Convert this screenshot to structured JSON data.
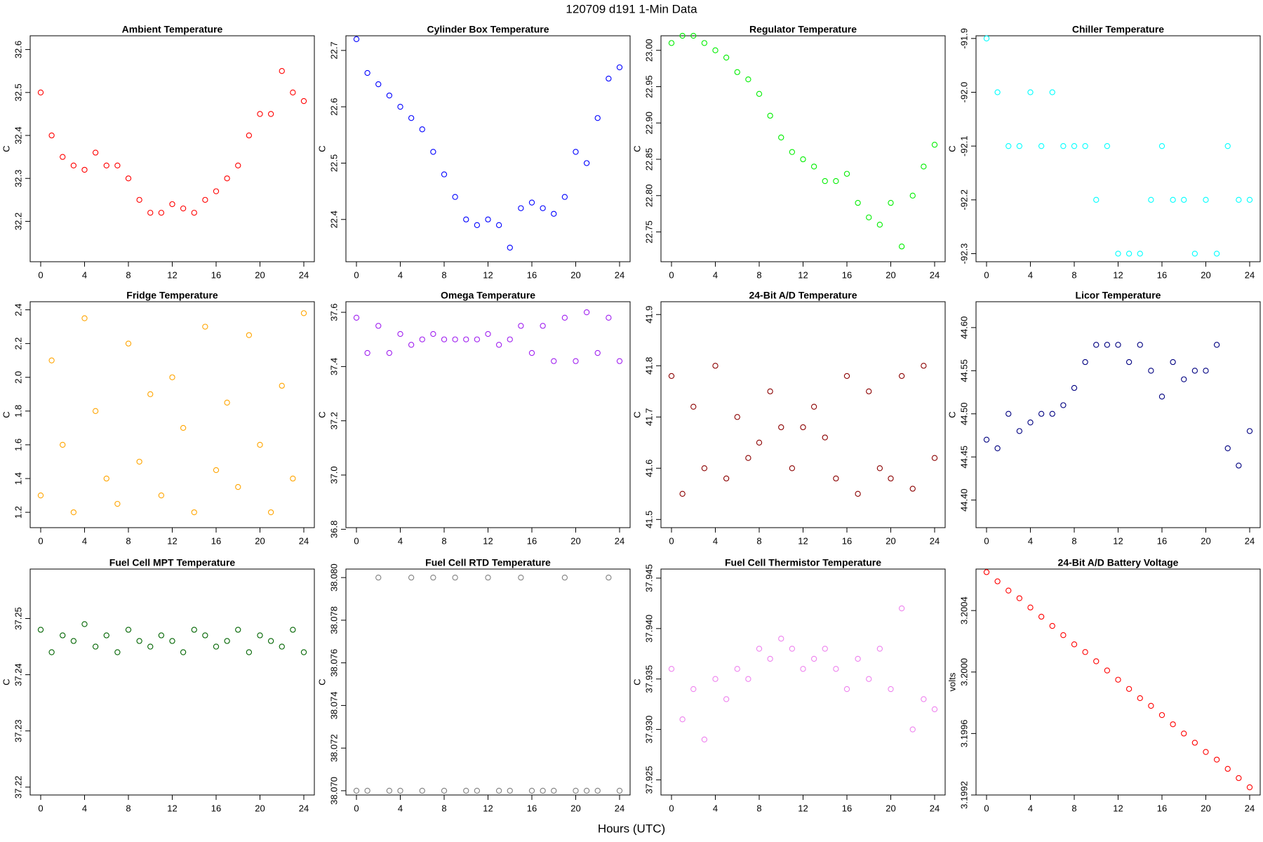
{
  "title": "120709   d191   1-Min Data",
  "x_label": "Hours (UTC)",
  "chart_data": [
    {
      "type": "scatter",
      "title": "Ambient Temperature",
      "y_label": "C",
      "color": "#ff0000",
      "x": [
        0,
        1,
        2,
        3,
        4,
        5,
        6,
        7,
        8,
        9,
        10,
        11,
        12,
        13,
        14,
        15,
        16,
        17,
        18,
        19,
        20,
        21,
        22,
        23,
        24
      ],
      "values": [
        32.5,
        32.4,
        32.35,
        32.33,
        32.32,
        32.36,
        32.33,
        32.33,
        32.3,
        32.25,
        32.22,
        32.22,
        32.24,
        32.23,
        32.22,
        32.25,
        32.27,
        32.3,
        32.33,
        32.4,
        32.45,
        32.45,
        32.55,
        32.5,
        32.48
      ],
      "xlim": [
        -0.96,
        24.96
      ],
      "xticks": [
        0,
        4,
        8,
        12,
        16,
        20,
        24
      ],
      "ylim": [
        32.106,
        32.632
      ],
      "yticks": [
        32.2,
        32.3,
        32.4,
        32.5,
        32.6
      ]
    },
    {
      "type": "scatter",
      "title": "Cylinder Box Temperature",
      "y_label": "C",
      "color": "#0000ff",
      "x": [
        0,
        1,
        2,
        3,
        4,
        5,
        6,
        7,
        8,
        9,
        10,
        11,
        12,
        13,
        14,
        15,
        16,
        17,
        18,
        19,
        20,
        21,
        22,
        23,
        24
      ],
      "values": [
        22.72,
        22.66,
        22.64,
        22.62,
        22.6,
        22.58,
        22.56,
        22.52,
        22.48,
        22.44,
        22.4,
        22.39,
        22.4,
        22.39,
        22.35,
        22.42,
        22.43,
        22.42,
        22.41,
        22.44,
        22.52,
        22.5,
        22.58,
        22.65,
        22.67
      ],
      "xlim": [
        -0.96,
        24.96
      ],
      "xticks": [
        0,
        4,
        8,
        12,
        16,
        20,
        24
      ],
      "ylim": [
        22.325,
        22.726
      ],
      "yticks": [
        22.4,
        22.5,
        22.6,
        22.7
      ]
    },
    {
      "type": "scatter",
      "title": "Regulator Temperature",
      "y_label": "C",
      "color": "#00ee00",
      "x": [
        0,
        1,
        2,
        3,
        4,
        5,
        6,
        7,
        8,
        9,
        10,
        11,
        12,
        13,
        14,
        15,
        16,
        17,
        18,
        19,
        20,
        21,
        22,
        23,
        24
      ],
      "values": [
        23.01,
        23.02,
        23.02,
        23.01,
        23.0,
        22.99,
        22.97,
        22.96,
        22.94,
        22.91,
        22.88,
        22.86,
        22.85,
        22.84,
        22.82,
        22.82,
        22.83,
        22.79,
        22.77,
        22.76,
        22.79,
        22.73,
        22.8,
        22.84,
        22.87
      ],
      "xlim": [
        -0.96,
        24.96
      ],
      "xticks": [
        0,
        4,
        8,
        12,
        16,
        20,
        24
      ],
      "ylim": [
        22.709,
        23.02
      ],
      "yticks": [
        22.75,
        {
          "value": 22.8,
          "label": "22.80"
        },
        22.85,
        {
          "value": 22.9,
          "label": "22.90"
        },
        22.95,
        {
          "value": 23,
          "label": "23.00"
        }
      ]
    },
    {
      "type": "scatter",
      "title": "Chiller Temperature",
      "y_label": "C",
      "color": "#00ffff",
      "x": [
        0,
        1,
        2,
        3,
        4,
        5,
        6,
        7,
        8,
        9,
        10,
        11,
        12,
        13,
        14,
        15,
        16,
        17,
        18,
        19,
        20,
        21,
        22,
        23,
        24
      ],
      "values": [
        -91.9,
        -92.0,
        -92.1,
        -92.1,
        -92.0,
        -92.1,
        -92.0,
        -92.1,
        -92.1,
        -92.1,
        -92.2,
        -92.1,
        -92.3,
        -92.3,
        -92.3,
        -92.2,
        -92.1,
        -92.2,
        -92.2,
        -92.3,
        -92.2,
        -92.3,
        -92.1,
        -92.2,
        -92.2
      ],
      "xlim": [
        -0.96,
        24.96
      ],
      "xticks": [
        0,
        4,
        8,
        12,
        16,
        20,
        24
      ],
      "ylim": [
        -92.315,
        -91.895
      ],
      "yticks": [
        -91.9,
        {
          "value": -92,
          "label": "-92.0"
        },
        -92.1,
        -92.2,
        -92.3
      ]
    },
    {
      "type": "scatter",
      "title": "Fridge Temperature",
      "y_label": "C",
      "color": "#ffa500",
      "x": [
        0,
        1,
        2,
        3,
        4,
        5,
        6,
        7,
        8,
        9,
        10,
        11,
        12,
        13,
        14,
        15,
        16,
        17,
        18,
        19,
        20,
        21,
        22,
        23,
        24
      ],
      "values": [
        1.3,
        2.1,
        1.6,
        1.2,
        2.35,
        1.8,
        1.4,
        1.25,
        2.2,
        1.5,
        1.9,
        1.3,
        2.0,
        1.7,
        1.2,
        2.3,
        1.45,
        1.85,
        1.35,
        2.25,
        1.6,
        1.2,
        1.95,
        1.4,
        2.38
      ],
      "xlim": [
        -0.96,
        24.96
      ],
      "xticks": [
        0,
        4,
        8,
        12,
        16,
        20,
        24
      ],
      "ylim": [
        1.109,
        2.448
      ],
      "yticks": [
        1.2,
        1.4,
        1.6,
        1.8,
        {
          "value": 2,
          "label": "2.0"
        },
        2.2,
        2.4
      ]
    },
    {
      "type": "scatter",
      "title": "Omega Temperature",
      "y_label": "C",
      "color": "#a020f0",
      "x": [
        0,
        1,
        2,
        3,
        4,
        5,
        6,
        7,
        8,
        9,
        10,
        11,
        12,
        13,
        14,
        15,
        16,
        17,
        18,
        19,
        20,
        21,
        22,
        23,
        24
      ],
      "values": [
        37.58,
        37.45,
        37.55,
        37.45,
        37.52,
        37.48,
        37.5,
        37.52,
        37.5,
        37.5,
        37.5,
        37.5,
        37.52,
        37.48,
        37.5,
        37.55,
        37.45,
        37.55,
        37.42,
        37.58,
        37.42,
        37.6,
        37.45,
        37.58,
        37.42
      ],
      "xlim": [
        -0.96,
        24.96
      ],
      "xticks": [
        0,
        4,
        8,
        12,
        16,
        20,
        24
      ],
      "ylim": [
        36.806,
        37.639
      ],
      "yticks": [
        36.8,
        {
          "value": 37,
          "label": "37.0"
        },
        37.2,
        37.4,
        37.6
      ]
    },
    {
      "type": "scatter",
      "title": "24-Bit A/D Temperature",
      "y_label": "C",
      "color": "#8b0000",
      "x": [
        0,
        1,
        2,
        3,
        4,
        5,
        6,
        7,
        8,
        9,
        10,
        11,
        12,
        13,
        14,
        15,
        16,
        17,
        18,
        19,
        20,
        21,
        22,
        23,
        24
      ],
      "values": [
        41.78,
        41.55,
        41.72,
        41.6,
        41.8,
        41.58,
        41.7,
        41.62,
        41.65,
        41.75,
        41.68,
        41.6,
        41.68,
        41.72,
        41.66,
        41.58,
        41.78,
        41.55,
        41.75,
        41.6,
        41.58,
        41.78,
        41.56,
        41.8,
        41.62
      ],
      "xlim": [
        -0.96,
        24.96
      ],
      "xticks": [
        0,
        4,
        8,
        12,
        16,
        20,
        24
      ],
      "ylim": [
        41.484,
        41.925
      ],
      "yticks": [
        41.5,
        41.6,
        41.7,
        41.8,
        41.9
      ]
    },
    {
      "type": "scatter",
      "title": "Licor Temperature",
      "y_label": "C",
      "color": "#000080",
      "x": [
        0,
        1,
        2,
        3,
        4,
        5,
        6,
        7,
        8,
        9,
        10,
        11,
        12,
        13,
        14,
        15,
        16,
        17,
        18,
        19,
        20,
        21,
        22,
        23,
        24
      ],
      "values": [
        44.47,
        44.46,
        44.5,
        44.48,
        44.49,
        44.5,
        44.5,
        44.51,
        44.53,
        44.56,
        44.58,
        44.58,
        44.58,
        44.56,
        44.58,
        44.55,
        44.52,
        44.56,
        44.54,
        44.55,
        44.55,
        44.58,
        44.46,
        44.44,
        44.48
      ],
      "xlim": [
        -0.96,
        24.96
      ],
      "xticks": [
        0,
        4,
        8,
        12,
        16,
        20,
        24
      ],
      "ylim": [
        44.368,
        44.63
      ],
      "yticks": [
        {
          "value": 44.4,
          "label": "44.40"
        },
        44.45,
        {
          "value": 44.5,
          "label": "44.50"
        },
        44.55,
        {
          "value": 44.6,
          "label": "44.60"
        }
      ]
    },
    {
      "type": "scatter",
      "title": "Fuel Cell MPT Temperature",
      "y_label": "C",
      "color": "#006400",
      "x": [
        0,
        1,
        2,
        3,
        4,
        5,
        6,
        7,
        8,
        9,
        10,
        11,
        12,
        13,
        14,
        15,
        16,
        17,
        18,
        19,
        20,
        21,
        22,
        23,
        24
      ],
      "values": [
        37.248,
        37.244,
        37.247,
        37.246,
        37.249,
        37.245,
        37.247,
        37.244,
        37.248,
        37.246,
        37.245,
        37.247,
        37.246,
        37.244,
        37.248,
        37.247,
        37.245,
        37.246,
        37.248,
        37.244,
        37.247,
        37.246,
        37.245,
        37.248,
        37.244
      ],
      "xlim": [
        -0.96,
        24.96
      ],
      "xticks": [
        0,
        4,
        8,
        12,
        16,
        20,
        24
      ],
      "ylim": [
        37.2186,
        37.2588
      ],
      "yticks": [
        37.22,
        37.23,
        37.24,
        37.25
      ]
    },
    {
      "type": "scatter",
      "title": "Fuel Cell RTD Temperature",
      "y_label": "C",
      "color": "#808080",
      "x": [
        0,
        1,
        2,
        3,
        4,
        5,
        6,
        7,
        8,
        9,
        10,
        11,
        12,
        13,
        14,
        15,
        16,
        17,
        18,
        19,
        20,
        21,
        22,
        23,
        24
      ],
      "values": [
        38.07,
        38.07,
        38.08,
        38.07,
        38.07,
        38.08,
        38.07,
        38.08,
        38.07,
        38.08,
        38.07,
        38.07,
        38.08,
        38.07,
        38.07,
        38.08,
        38.07,
        38.07,
        38.07,
        38.08,
        38.07,
        38.07,
        38.07,
        38.08,
        38.07
      ],
      "xlim": [
        -0.96,
        24.96
      ],
      "xticks": [
        0,
        4,
        8,
        12,
        16,
        20,
        24
      ],
      "ylim": [
        38.0698,
        38.0804
      ],
      "yticks": [
        {
          "value": 38.07,
          "label": "38.070"
        },
        38.072,
        38.074,
        38.076,
        38.078,
        {
          "value": 38.08,
          "label": "38.080"
        }
      ]
    },
    {
      "type": "scatter",
      "title": "Fuel Cell Thermistor Temperature",
      "y_label": "C",
      "color": "#ee82ee",
      "x": [
        0,
        1,
        2,
        3,
        4,
        5,
        6,
        7,
        8,
        9,
        10,
        11,
        12,
        13,
        14,
        15,
        16,
        17,
        18,
        19,
        20,
        21,
        22,
        23,
        24
      ],
      "values": [
        37.936,
        37.931,
        37.934,
        37.929,
        37.935,
        37.933,
        37.936,
        37.935,
        37.938,
        37.937,
        37.939,
        37.938,
        37.936,
        37.937,
        37.938,
        37.936,
        37.934,
        37.937,
        37.935,
        37.938,
        37.934,
        37.942,
        37.93,
        37.933,
        37.932
      ],
      "xlim": [
        -0.96,
        24.96
      ],
      "xticks": [
        0,
        4,
        8,
        12,
        16,
        20,
        24
      ],
      "ylim": [
        37.9235,
        37.9459
      ],
      "yticks": [
        37.925,
        {
          "value": 37.93,
          "label": "37.930"
        },
        37.935,
        {
          "value": 37.94,
          "label": "37.940"
        },
        37.945
      ]
    },
    {
      "type": "scatter",
      "title": "24-Bit A/D Battery Voltage",
      "y_label": "volts",
      "color": "#ff0000",
      "x": [
        0,
        1,
        2,
        3,
        4,
        5,
        6,
        7,
        8,
        9,
        10,
        11,
        12,
        13,
        14,
        15,
        16,
        17,
        18,
        19,
        20,
        21,
        22,
        23,
        24
      ],
      "values": [
        3.20065,
        3.20059,
        3.20053,
        3.20048,
        3.20042,
        3.20036,
        3.2003,
        3.20024,
        3.20018,
        3.20013,
        3.20007,
        3.20001,
        3.19995,
        3.19989,
        3.19983,
        3.19978,
        3.19972,
        3.19966,
        3.1996,
        3.19954,
        3.19948,
        3.19943,
        3.19937,
        3.19931,
        3.19925
      ],
      "xlim": [
        -0.96,
        24.96
      ],
      "xticks": [
        0,
        4,
        8,
        12,
        16,
        20,
        24
      ],
      "ylim": [
        3.1992,
        3.20067
      ],
      "yticks": [
        3.1992,
        3.1996,
        {
          "value": 3.2,
          "label": "3.2000"
        },
        3.2004
      ]
    }
  ]
}
